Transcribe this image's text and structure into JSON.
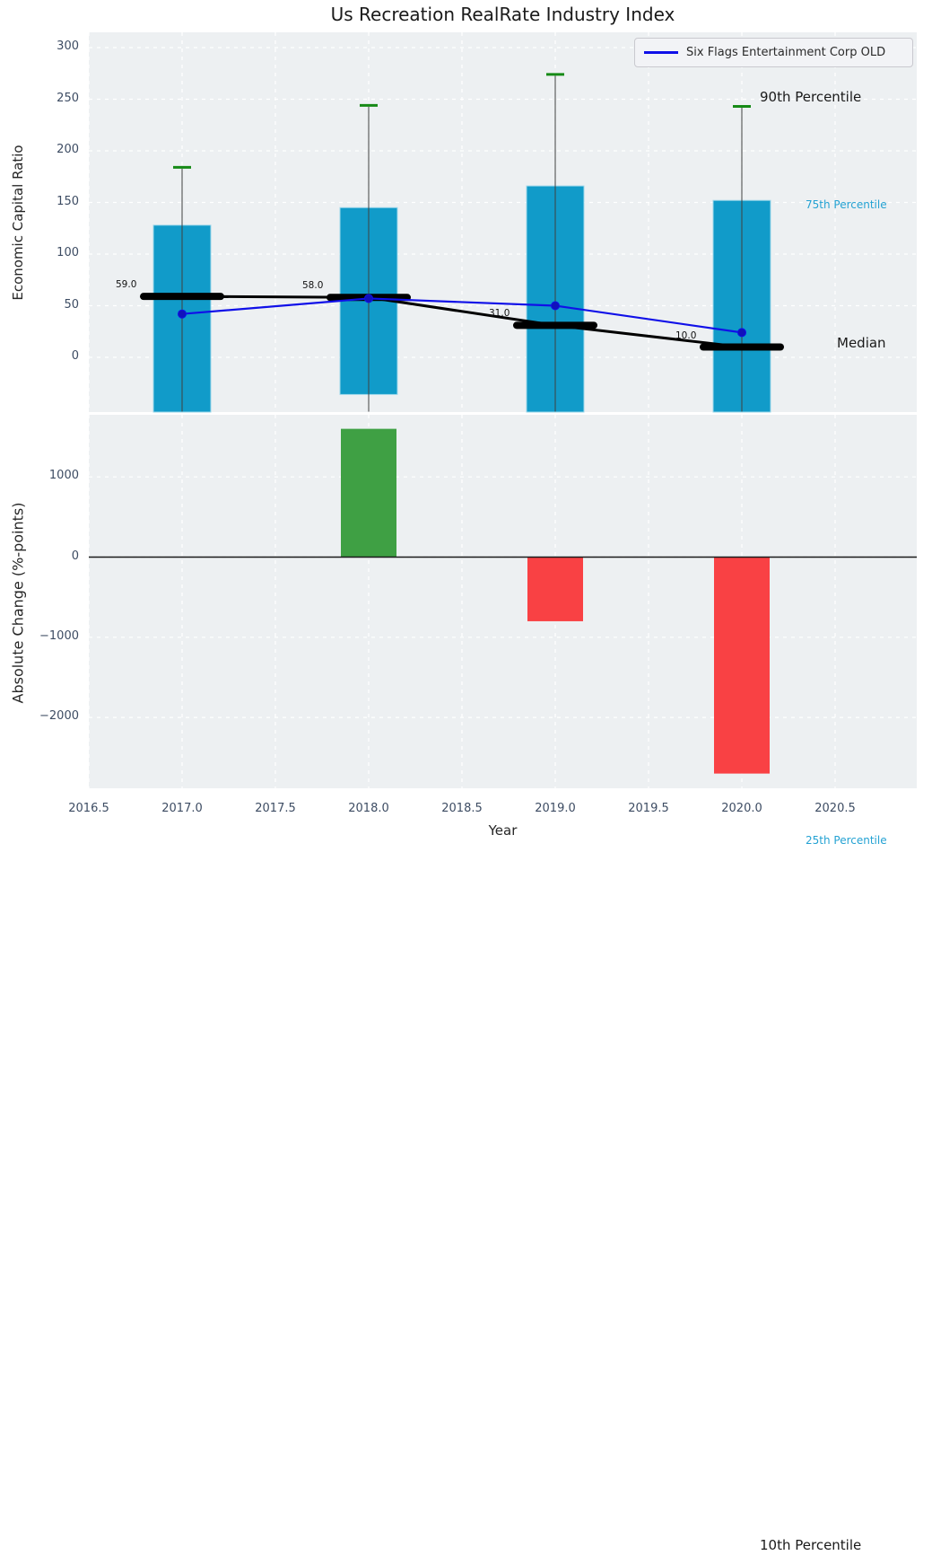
{
  "title": "Us Recreation RealRate Industry Index",
  "legend": {
    "label": "Six Flags Entertainment Corp OLD"
  },
  "annotations": {
    "p90": "90th Percentile",
    "p75": "75th Percentile",
    "median": "Median",
    "p25": "25th Percentile",
    "p10": "10th Percentile"
  },
  "axes": {
    "top": {
      "ylabel": "Economic Capital Ratio",
      "ytick_values": [
        0,
        50,
        100,
        150,
        200,
        250,
        300
      ],
      "ytick_labels": [
        "0",
        "50",
        "100",
        "150",
        "200",
        "250",
        "300"
      ],
      "ylim": [
        -53,
        315
      ]
    },
    "bottom": {
      "ylabel": "Absolute Change (%-points)",
      "xlabel": "Year",
      "ytick_values": [
        1000,
        0,
        -1000,
        -2000
      ],
      "ytick_labels": [
        "1000",
        "0",
        "−1000",
        "−2000"
      ],
      "xtick_values": [
        2016.5,
        2017.0,
        2017.5,
        2018.0,
        2018.5,
        2019.0,
        2019.5,
        2020.0,
        2020.5
      ],
      "xtick_labels": [
        "2016.5",
        "2017.0",
        "2017.5",
        "2018.0",
        "2018.5",
        "2019.0",
        "2019.5",
        "2020.0",
        "2020.5"
      ],
      "ylim": [
        -2890,
        1780
      ],
      "xlim": [
        2016.5,
        2020.94
      ]
    }
  },
  "chart_data": [
    {
      "type": "bar",
      "subplot": "top",
      "title": "Us Recreation RealRate Industry Index",
      "ylabel": "Economic Capital Ratio",
      "ylim": [
        -53,
        315
      ],
      "grid": true,
      "legend_position": "upper right",
      "x": [
        2017,
        2018,
        2019,
        2020
      ],
      "series": [
        {
          "name": "90th Percentile (green whisker cap)",
          "values": [
            184,
            244,
            274,
            243
          ]
        },
        {
          "name": "75th Percentile (bar top)",
          "values": [
            128,
            145,
            166,
            152
          ]
        },
        {
          "name": "Median",
          "values": [
            59.0,
            58.0,
            31.0,
            10.0
          ]
        },
        {
          "name": "25th Percentile (bar bottom)",
          "values": [
            -60,
            -36,
            -60,
            -60
          ]
        },
        {
          "name": "Six Flags Entertainment Corp OLD",
          "values": [
            42,
            57,
            50,
            24
          ]
        }
      ],
      "p25_clipped_below_axis": [
        true,
        false,
        true,
        true
      ],
      "median_labels": [
        "59.0",
        "58.0",
        "31.0",
        "10.0"
      ]
    },
    {
      "type": "bar",
      "subplot": "bottom",
      "ylabel": "Absolute Change (%-points)",
      "xlabel": "Year",
      "ylim": [
        -2890,
        1780
      ],
      "xlim": [
        2016.5,
        2020.94
      ],
      "grid": true,
      "x": [
        2018,
        2019,
        2020
      ],
      "values": [
        1600,
        -800,
        -2700
      ],
      "bar_colors": [
        "green",
        "red",
        "red"
      ]
    }
  ],
  "colors": {
    "box_bar": "#119bc9",
    "box_bar_edge": "#9fd8eb",
    "whisker": "#404040",
    "whisker_cap_green": "#168a16",
    "median_black": "#000000",
    "company_line_blue": "#1010e8",
    "company_marker_blue": "#1111bb",
    "positive_green": "#3fa044",
    "negative_red": "#f94144",
    "plot_background": "#edf0f2",
    "grid_white": "#ffffff",
    "tick_text": "#3d4c63",
    "annotation_cyan": "#24a2d3",
    "text_dark": "#1a1a1a"
  }
}
